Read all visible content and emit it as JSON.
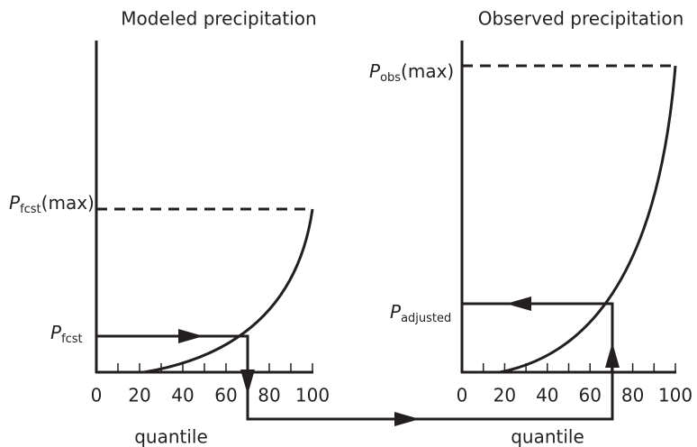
{
  "left_panel": {
    "title": "Modeled precipitation",
    "max_label": {
      "symbol": "P",
      "subscript": "fcst",
      "suffix": "(max)"
    },
    "value_label": {
      "symbol": "P",
      "subscript": "fcst"
    },
    "xticks": [
      0,
      20,
      40,
      60,
      80,
      100
    ],
    "xlabel": "quantile"
  },
  "right_panel": {
    "title": "Observed precipitation",
    "max_label": {
      "symbol": "P",
      "subscript": "obs",
      "suffix": "(max)"
    },
    "value_label": {
      "symbol": "P",
      "subscript": "adjusted"
    },
    "xticks": [
      0,
      20,
      40,
      60,
      80,
      100
    ],
    "xlabel": "quantile"
  }
}
